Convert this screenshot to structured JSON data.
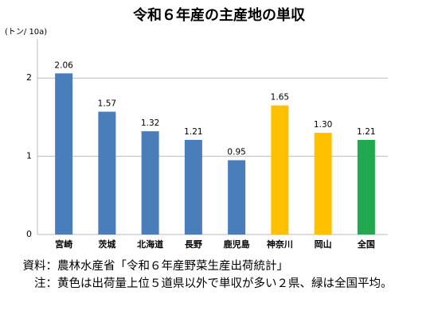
{
  "chart_data": {
    "type": "bar",
    "title": "令和６年産の主産地の単収",
    "unit_label": "(トン/ 10a)",
    "categories": [
      "宮崎",
      "茨城",
      "北海道",
      "長野",
      "鹿児島",
      "神奈川",
      "岡山",
      "全国"
    ],
    "values": [
      2.06,
      1.57,
      1.32,
      1.21,
      0.95,
      1.65,
      1.3,
      1.21
    ],
    "value_labels": [
      "2.06",
      "1.57",
      "1.32",
      "1.21",
      "0.95",
      "1.65",
      "1.30",
      "1.21"
    ],
    "colors": [
      "#4a7ebb",
      "#4a7ebb",
      "#4a7ebb",
      "#4a7ebb",
      "#4a7ebb",
      "#ffc000",
      "#ffc000",
      "#22a94f"
    ],
    "ylim": [
      0,
      2.5
    ],
    "yticks": [
      0,
      1,
      2
    ],
    "grid": true,
    "notes": [
      {
        "label": "資料：",
        "text": "農林水産省「令和６年産野菜生産出荷統計」"
      },
      {
        "label": "注：",
        "text": "黄色は出荷量上位５道県以外で単収が多い２県、緑は全国平均。"
      }
    ]
  }
}
